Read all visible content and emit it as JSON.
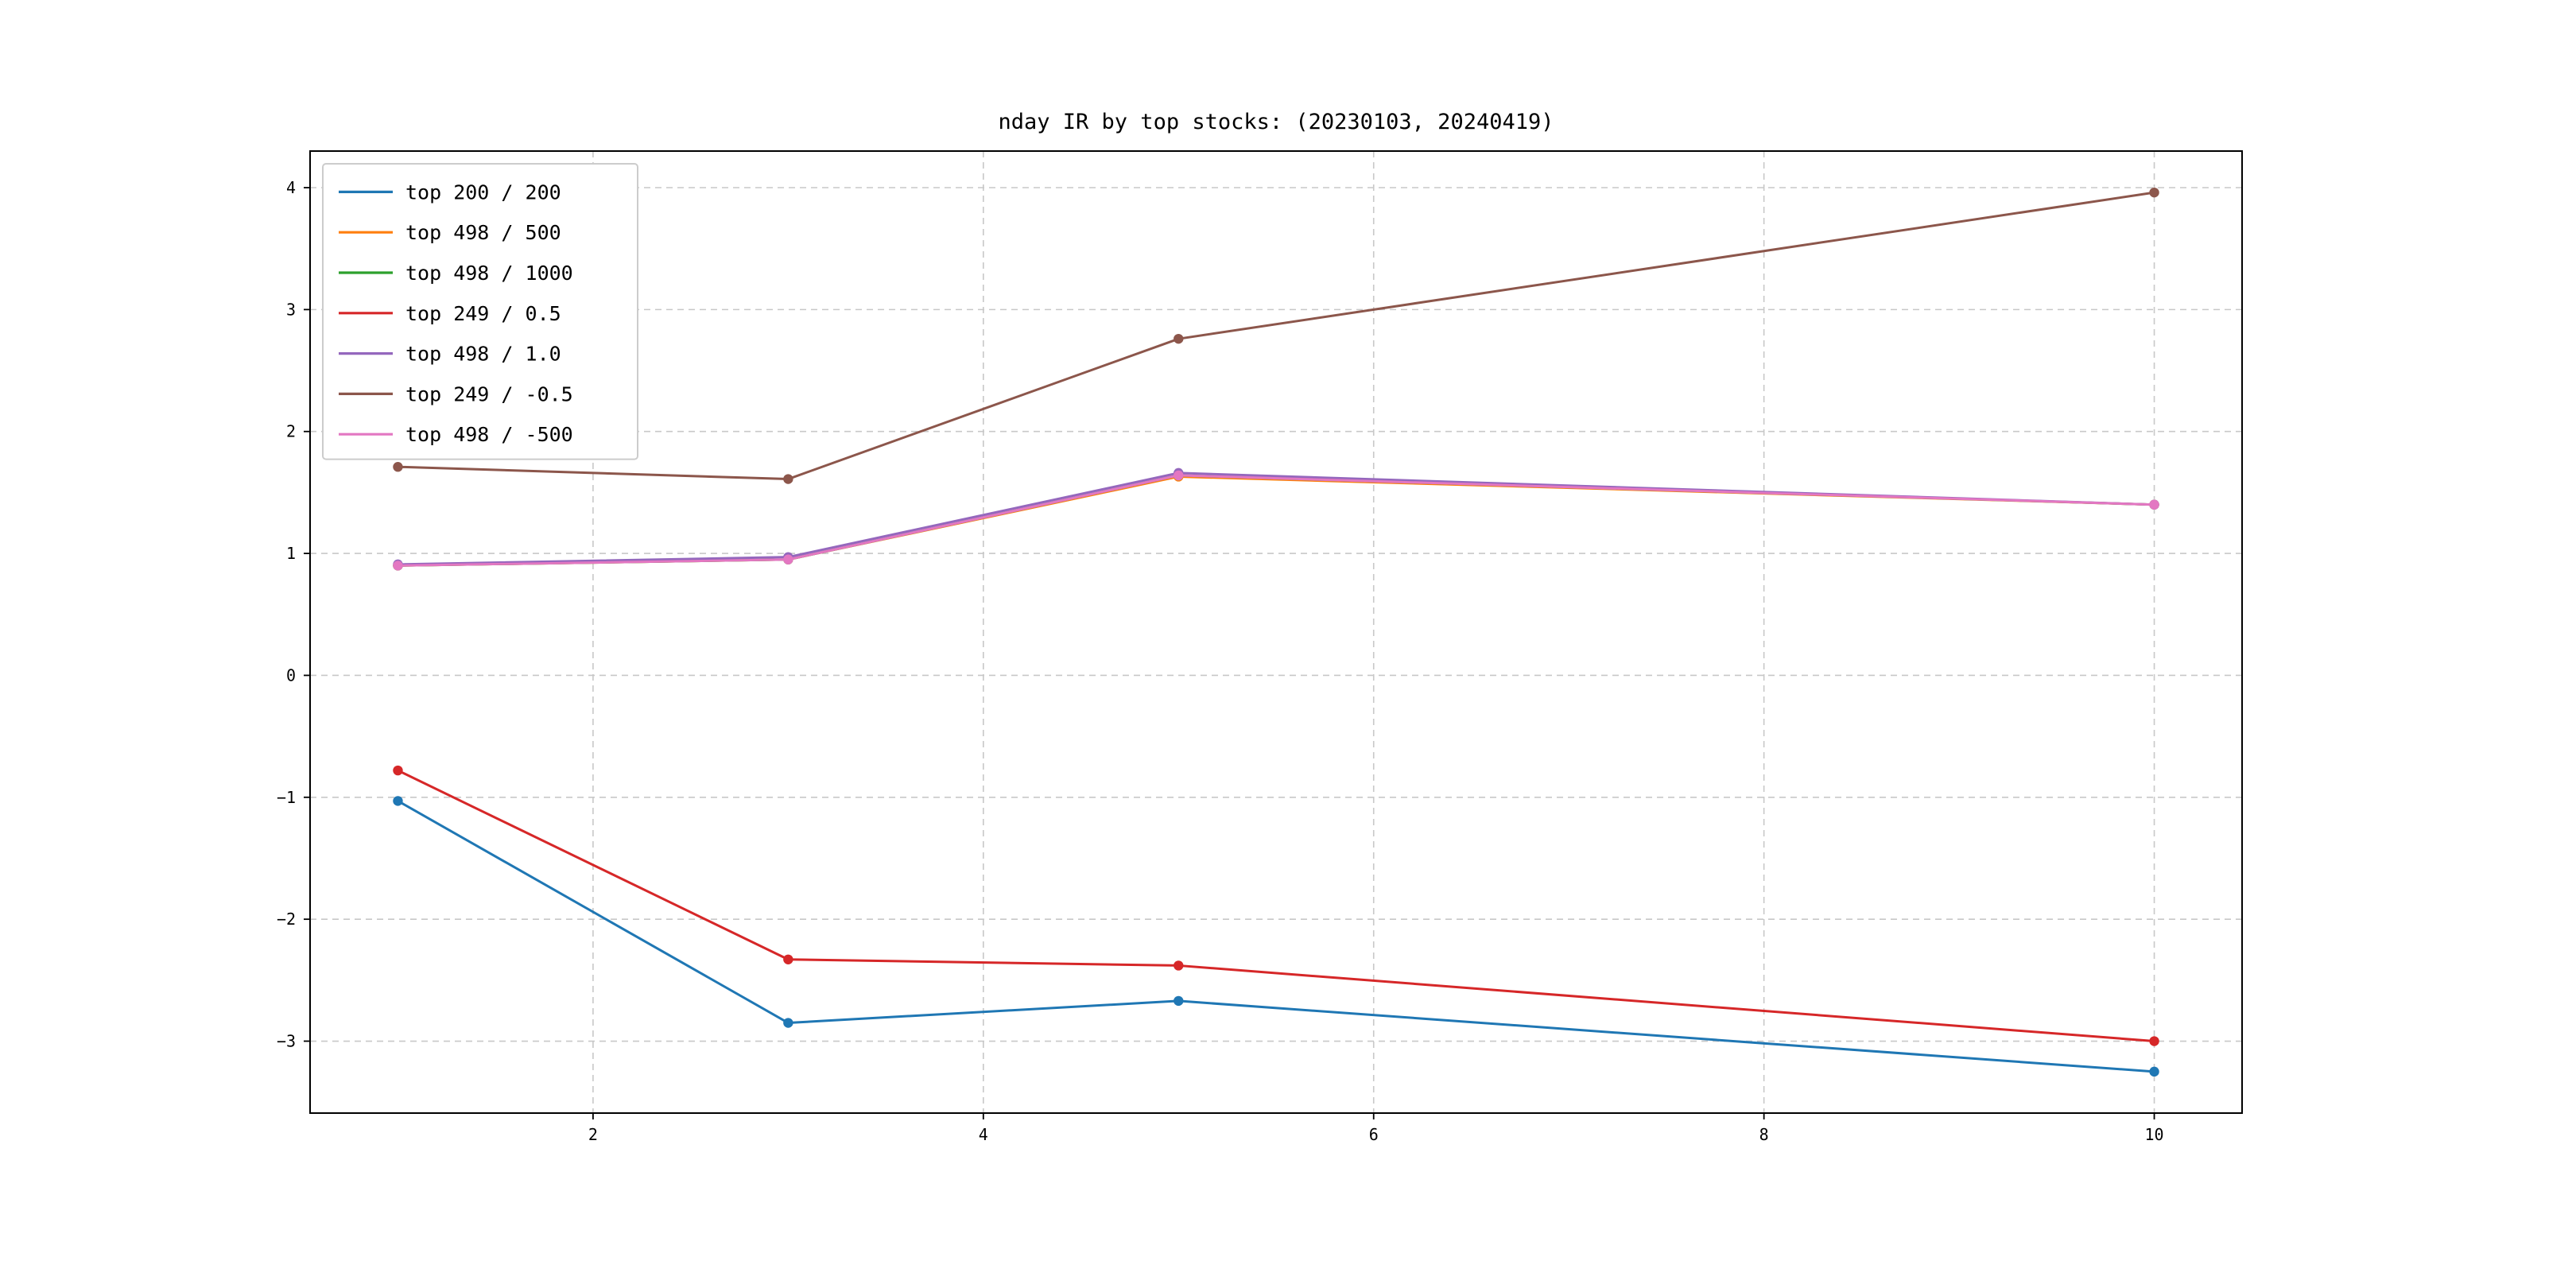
{
  "figure": {
    "title": "nday IR by top stocks: (20230103, 20240419)"
  },
  "chart_data": {
    "type": "line",
    "title": "nday IR by top stocks: (20230103, 20240419)",
    "x": [
      1,
      3,
      5,
      10
    ],
    "x_ticks": [
      2,
      4,
      6,
      8,
      10
    ],
    "y_ticks": [
      -3,
      -2,
      -1,
      0,
      1,
      2,
      3,
      4
    ],
    "xlim": [
      0.55,
      10.45
    ],
    "ylim": [
      -3.59,
      4.3
    ],
    "grid": true,
    "grid_style": "dashed",
    "legend_position": "upper left",
    "marker": "circle",
    "series": [
      {
        "name": "top 200 / 200",
        "color": "#1f77b4",
        "values": [
          -1.03,
          -2.85,
          -2.67,
          -3.25
        ]
      },
      {
        "name": "top 498 / 500",
        "color": "#ff7f0e",
        "values": [
          0.9,
          0.95,
          1.63,
          1.4
        ]
      },
      {
        "name": "top 498 / 1000",
        "color": "#2ca02c",
        "values": [
          0.9,
          0.95,
          1.64,
          1.4
        ]
      },
      {
        "name": "top 249 / 0.5",
        "color": "#d62728",
        "values": [
          -0.78,
          -2.33,
          -2.38,
          -3.0
        ]
      },
      {
        "name": "top 498 / 1.0",
        "color": "#9467bd",
        "values": [
          0.91,
          0.97,
          1.66,
          1.4
        ]
      },
      {
        "name": "top 249 / -0.5",
        "color": "#8c564b",
        "values": [
          1.71,
          1.61,
          2.76,
          3.96
        ]
      },
      {
        "name": "top 498 / -500",
        "color": "#e377c2",
        "values": [
          0.9,
          0.95,
          1.64,
          1.4
        ]
      }
    ]
  }
}
